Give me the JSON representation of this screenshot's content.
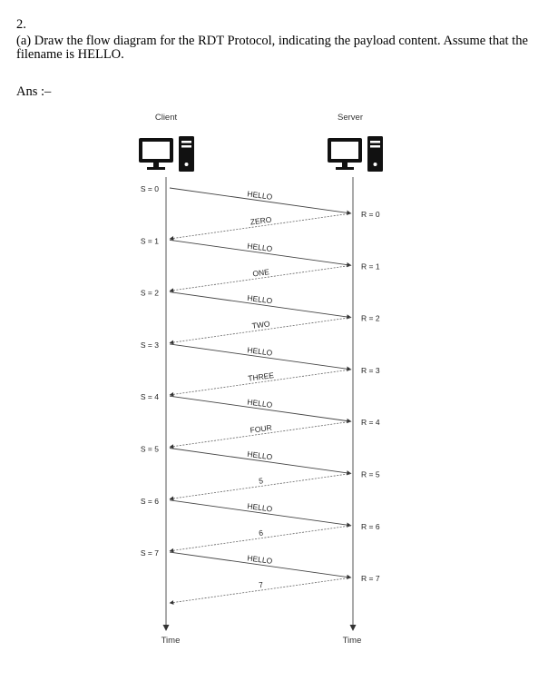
{
  "document": {
    "question_number": "2.",
    "question_text": "(a) Draw the flow diagram for the RDT Protocol, indicating the payload content. Assume that the filename is HELLO.",
    "answer_label": "Ans :–"
  },
  "diagram": {
    "client_label": "Client",
    "server_label": "Server",
    "time_label_left": "Time",
    "time_label_right": "Time",
    "icons": [
      "computer-icon",
      "computer-icon"
    ],
    "exchanges": [
      {
        "sender_state": "S = 0",
        "data_payload": "HELLO",
        "receiver_state": "R = 0",
        "ack_payload": "ZERO"
      },
      {
        "sender_state": "S = 1",
        "data_payload": "HELLO",
        "receiver_state": "R = 1",
        "ack_payload": "ONE"
      },
      {
        "sender_state": "S = 2",
        "data_payload": "HELLO",
        "receiver_state": "R = 2",
        "ack_payload": "TWO"
      },
      {
        "sender_state": "S = 3",
        "data_payload": "HELLO",
        "receiver_state": "R = 3",
        "ack_payload": "THREE"
      },
      {
        "sender_state": "S = 4",
        "data_payload": "HELLO",
        "receiver_state": "R = 4",
        "ack_payload": "FOUR"
      },
      {
        "sender_state": "S = 5",
        "data_payload": "HELLO",
        "receiver_state": "R = 5",
        "ack_payload": "5"
      },
      {
        "sender_state": "S = 6",
        "data_payload": "HELLO",
        "receiver_state": "R = 6",
        "ack_payload": "6"
      },
      {
        "sender_state": "S = 7",
        "data_payload": "HELLO",
        "receiver_state": "R = 7",
        "ack_payload": "7"
      }
    ]
  }
}
